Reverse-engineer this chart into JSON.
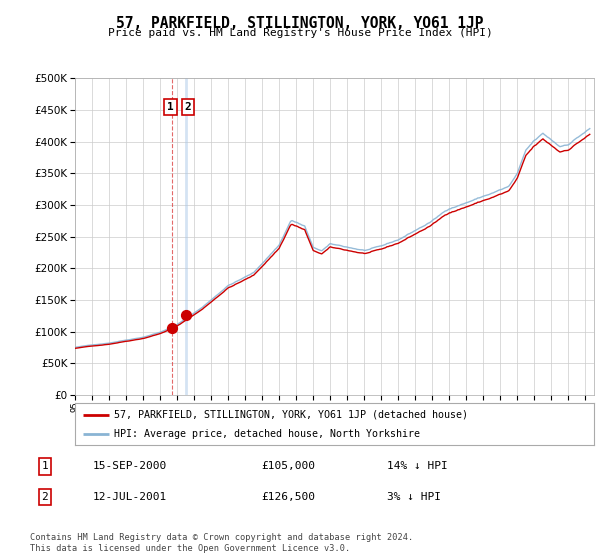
{
  "title": "57, PARKFIELD, STILLINGTON, YORK, YO61 1JP",
  "subtitle": "Price paid vs. HM Land Registry's House Price Index (HPI)",
  "ylim": [
    0,
    500000
  ],
  "yticks": [
    0,
    50000,
    100000,
    150000,
    200000,
    250000,
    300000,
    350000,
    400000,
    450000,
    500000
  ],
  "legend_label_red": "57, PARKFIELD, STILLINGTON, YORK, YO61 1JP (detached house)",
  "legend_label_blue": "HPI: Average price, detached house, North Yorkshire",
  "transaction1_date": "15-SEP-2000",
  "transaction1_price": "£105,000",
  "transaction1_hpi": "14% ↓ HPI",
  "transaction2_date": "12-JUL-2001",
  "transaction2_price": "£126,500",
  "transaction2_hpi": "3% ↓ HPI",
  "footer": "Contains HM Land Registry data © Crown copyright and database right 2024.\nThis data is licensed under the Open Government Licence v3.0.",
  "red_color": "#cc0000",
  "blue_color": "#8ab4d4",
  "vline1_color": "#dd4444",
  "vline2_color": "#aac8e8",
  "background_color": "#ffffff",
  "grid_color": "#cccccc",
  "transaction_x1": 2000.708,
  "transaction_x2": 2001.536,
  "transaction_y1": 105000,
  "transaction_y2": 126500,
  "xlim_start": 1995.0,
  "xlim_end": 2025.5
}
